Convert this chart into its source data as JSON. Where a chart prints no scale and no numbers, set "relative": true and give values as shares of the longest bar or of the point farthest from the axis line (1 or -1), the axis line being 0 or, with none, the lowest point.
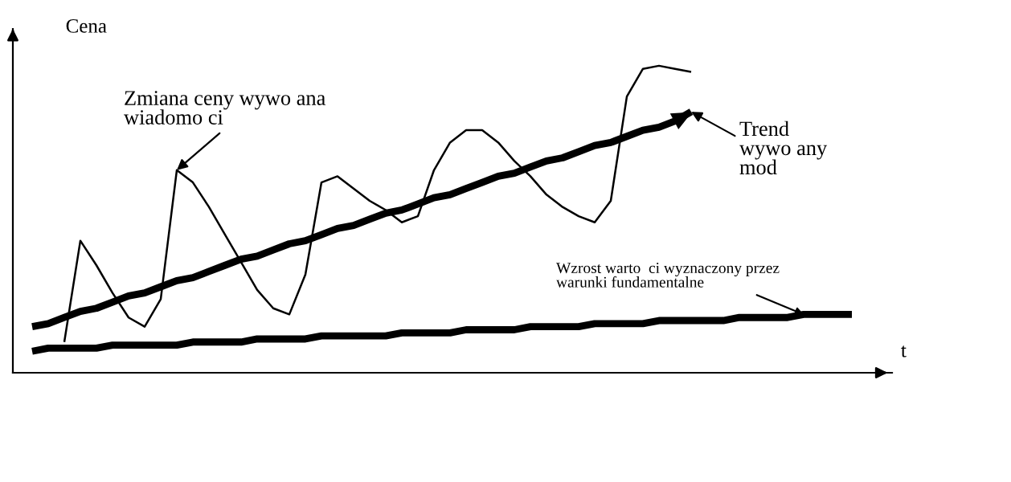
{
  "chart_data": {
    "type": "line",
    "relative": true,
    "ylabel": "Cena",
    "xlabel": "t",
    "marker": "none",
    "line_style": "solid",
    "categories": [
      null,
      null,
      null,
      null,
      null,
      null,
      null,
      null,
      null,
      null,
      null,
      null,
      null,
      null,
      null,
      null,
      null,
      null,
      null,
      null,
      null,
      null,
      null,
      null,
      null,
      null,
      null,
      null,
      null,
      null,
      null,
      null,
      null,
      null,
      null,
      null,
      null,
      null,
      null,
      null,
      null,
      null,
      null,
      null,
      null,
      null,
      null,
      null,
      null,
      null,
      null,
      null
    ],
    "series": [
      {
        "color": "#000000",
        "values": [
          null,
          null,
          0.1,
          0.43,
          0.35,
          0.26,
          0.18,
          0.15,
          0.24,
          0.66,
          0.62,
          0.54,
          0.45,
          0.36,
          0.27,
          0.21,
          0.19,
          0.32,
          0.62,
          0.64,
          0.6,
          0.56,
          0.53,
          0.49,
          0.51,
          0.66,
          0.75,
          0.79,
          0.79,
          0.75,
          0.69,
          0.64,
          0.58,
          0.54,
          0.51,
          0.49,
          0.56,
          0.9,
          0.99,
          1.0,
          0.99,
          0.98,
          null,
          null,
          null,
          null,
          null,
          null,
          null,
          null,
          null,
          null
        ]
      },
      {
        "color": "#000000",
        "values": [
          0.15,
          0.16,
          0.18,
          0.2,
          0.21,
          0.23,
          0.25,
          0.26,
          0.28,
          0.3,
          0.31,
          0.33,
          0.35,
          0.37,
          0.38,
          0.4,
          0.42,
          0.43,
          0.45,
          0.47,
          0.48,
          0.5,
          0.52,
          0.53,
          0.55,
          0.57,
          0.58,
          0.6,
          0.62,
          0.64,
          0.65,
          0.67,
          0.69,
          0.7,
          0.72,
          0.74,
          0.75,
          0.77,
          0.79,
          0.8,
          0.82,
          0.85,
          null,
          null,
          null,
          null,
          null,
          null,
          null,
          null,
          null,
          null
        ]
      },
      {
        "color": "#000000",
        "values": [
          0.07,
          0.08,
          0.08,
          0.08,
          0.08,
          0.09,
          0.09,
          0.09,
          0.09,
          0.09,
          0.1,
          0.1,
          0.1,
          0.1,
          0.11,
          0.11,
          0.11,
          0.11,
          0.12,
          0.12,
          0.12,
          0.12,
          0.12,
          0.13,
          0.13,
          0.13,
          0.13,
          0.14,
          0.14,
          0.14,
          0.14,
          0.15,
          0.15,
          0.15,
          0.15,
          0.16,
          0.16,
          0.16,
          0.16,
          0.17,
          0.17,
          0.17,
          0.17,
          0.17,
          0.18,
          0.18,
          0.18,
          0.18,
          0.19,
          0.19,
          0.19,
          0.19
        ]
      }
    ],
    "annotations": [
      "Zmiana ceny wywo ana\nwiadomo ci",
      "Trend\nwywo any\nmod",
      "Wzrost warto  ci wyznaczony przez\nwarunki fundamentalne"
    ]
  }
}
